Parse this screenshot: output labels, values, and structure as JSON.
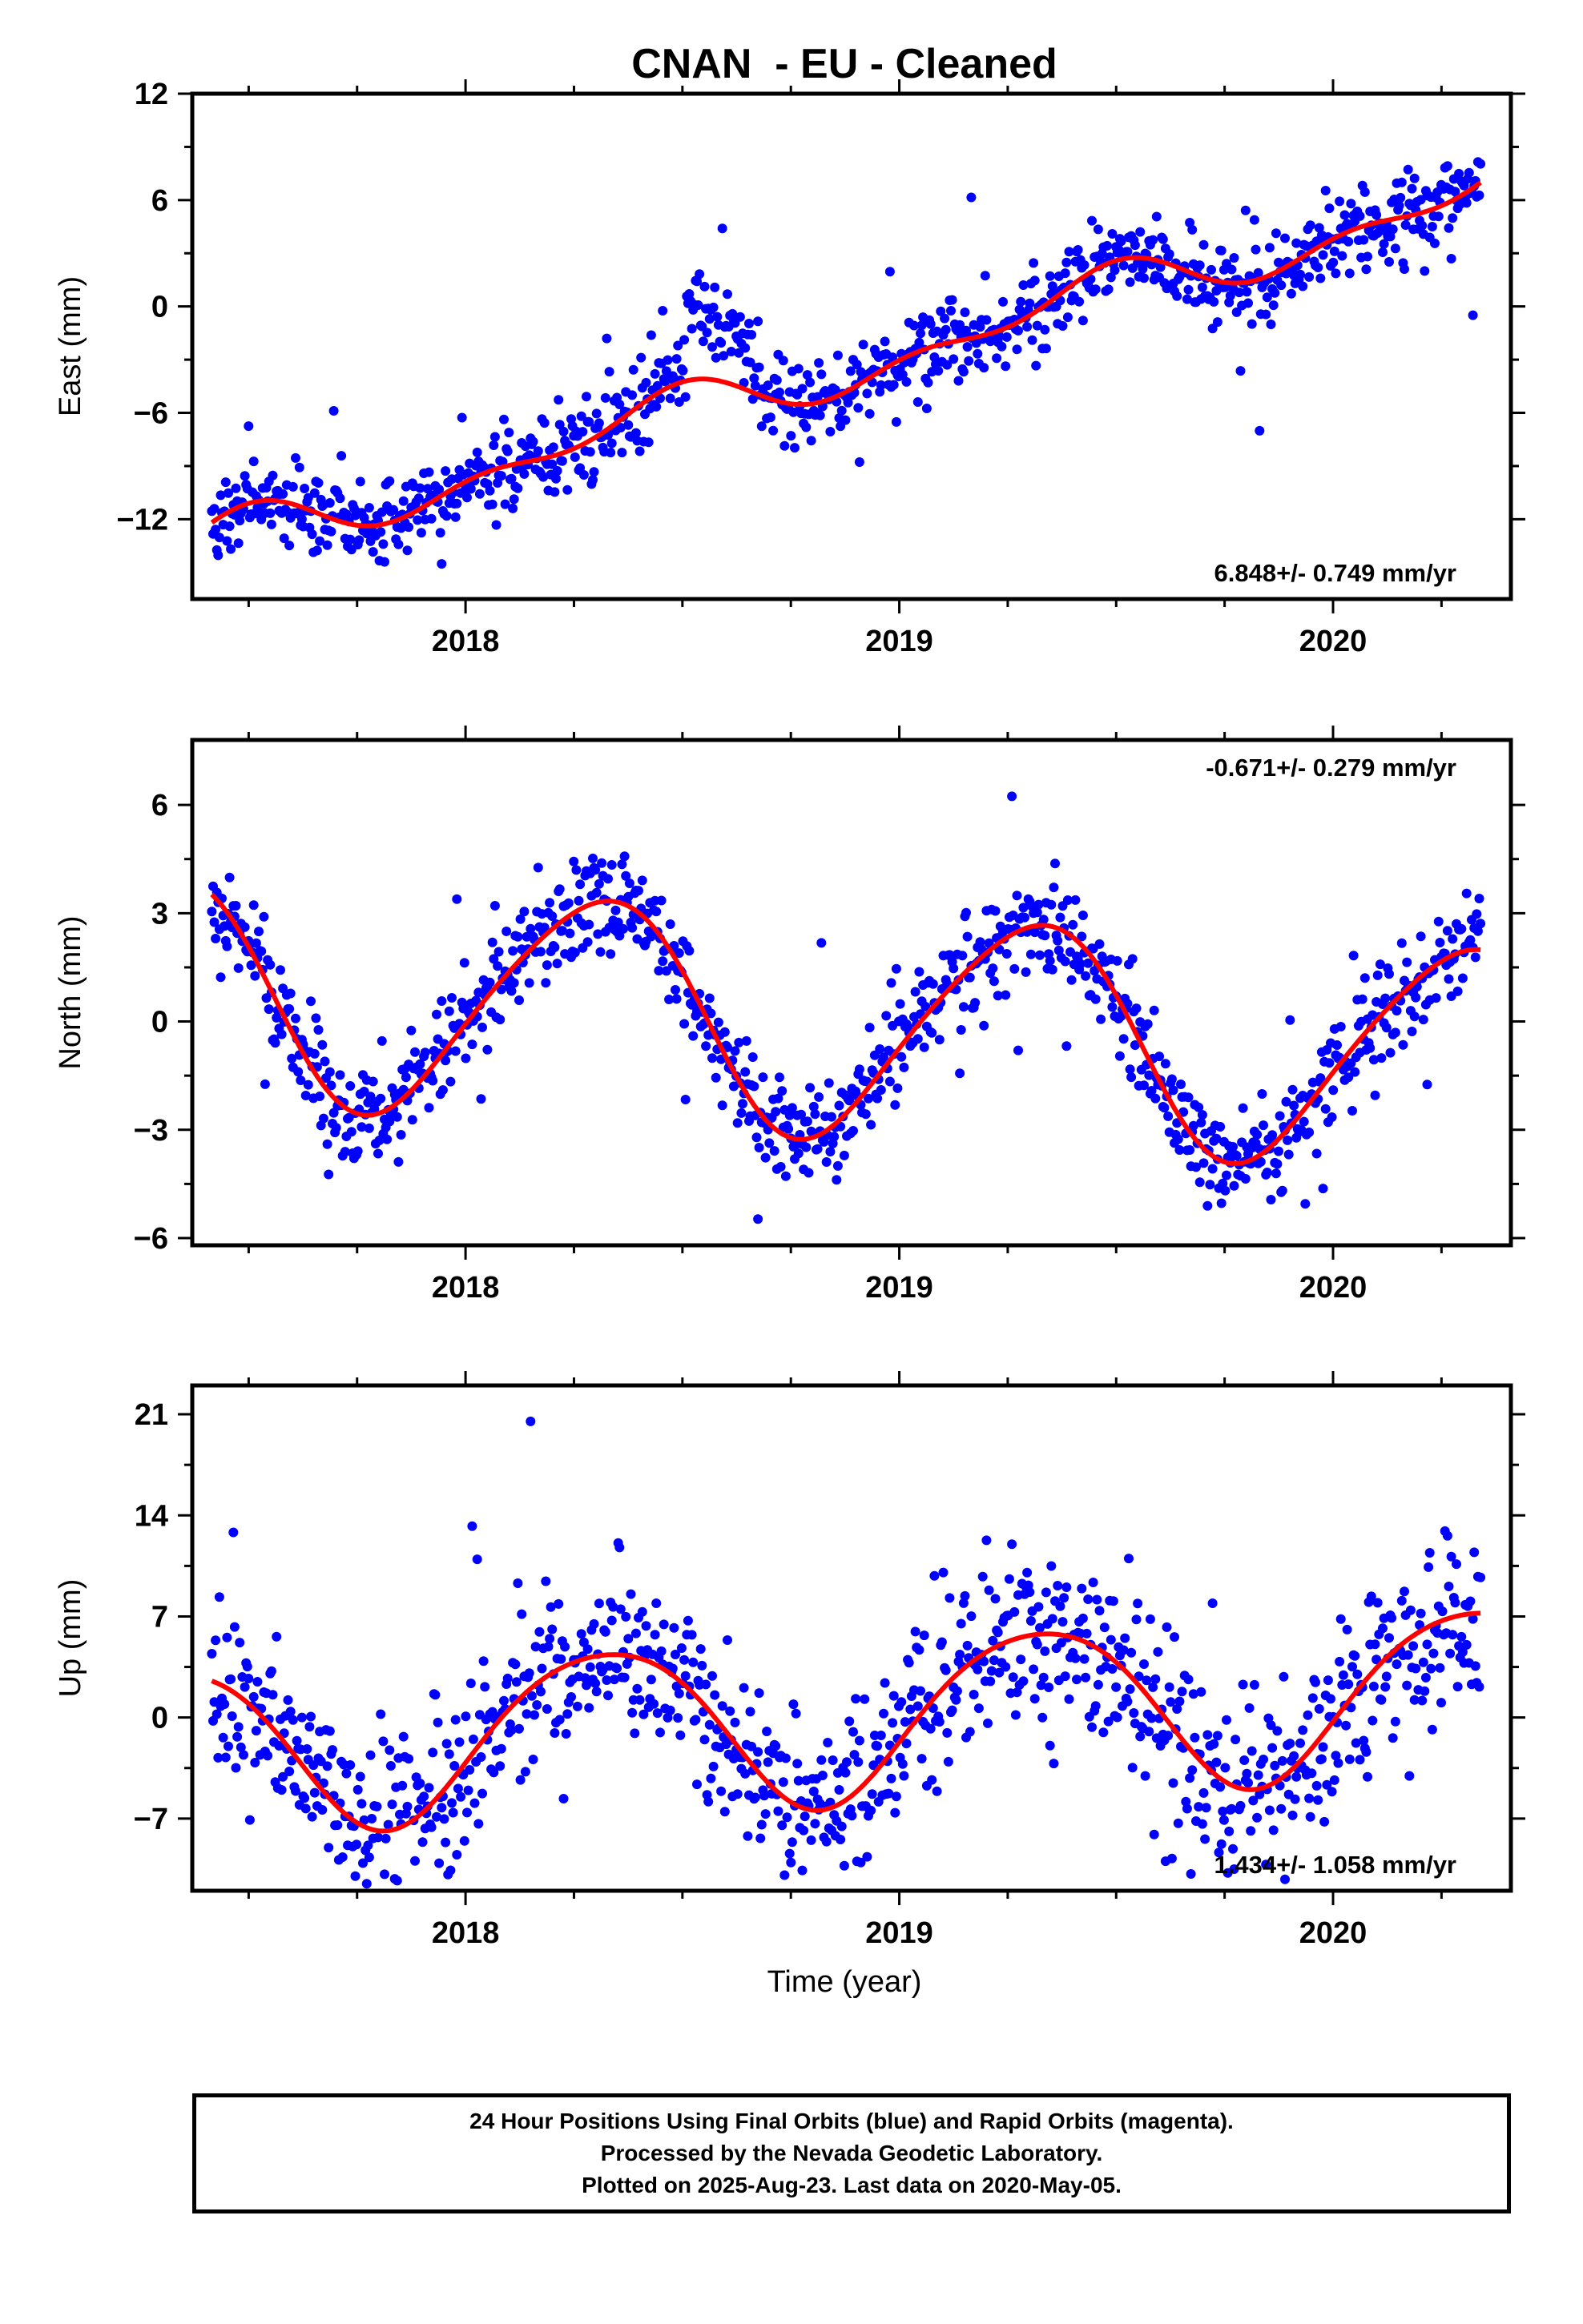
{
  "title": "CNAN  - EU - Cleaned",
  "xlabel": "Time (year)",
  "footer": {
    "line1": "24 Hour Positions Using Final Orbits (blue) and Rapid Orbits (magenta).",
    "line2": "Processed by the Nevada Geodetic Laboratory.",
    "line3": "Plotted on 2025-Aug-23. Last data on 2020-May-05."
  },
  "colors": {
    "points": "#0000ff",
    "fit": "#ff0000",
    "axes": "#000000"
  },
  "chart_data": [
    {
      "type": "scatter",
      "panel": "east",
      "ylabel": "East (mm)",
      "xlim": [
        2017.37,
        2020.41
      ],
      "ylim": [
        -16.5,
        12
      ],
      "xticks": [
        2018,
        2019,
        2020
      ],
      "xtick_labels": [
        "2018",
        "2019",
        "2020"
      ],
      "yticks": [
        -12,
        -6,
        0,
        6,
        12
      ],
      "ytick_labels": [
        "−12",
        "−6",
        "0",
        "6",
        "12"
      ],
      "rate_label": "6.848+/- 0.749 mm/yr",
      "rate_position": "bottom-right",
      "trend": {
        "rate": 6.848,
        "offset": -2.63,
        "seasonal": [
          0.45,
          -1.1,
          0.25,
          0.7
        ]
      },
      "scatter_sd": 1.15,
      "outlier_rate": 0.06,
      "offsets": [
        {
          "start": 2018.51,
          "end": 2018.66,
          "value": 4.2
        }
      ],
      "series": [
        {
          "name": "Final Orbits",
          "color": "#0000ff",
          "kind": "points"
        },
        {
          "name": "Fit",
          "color": "#ff0000",
          "kind": "line"
        }
      ]
    },
    {
      "type": "scatter",
      "panel": "north",
      "ylabel": "North (mm)",
      "xlim": [
        2017.37,
        2020.41
      ],
      "ylim": [
        -6.2,
        7.8
      ],
      "xticks": [
        2018,
        2019,
        2020
      ],
      "xtick_labels": [
        "2018",
        "2019",
        "2020"
      ],
      "yticks": [
        -6,
        -3,
        0,
        3,
        6
      ],
      "ytick_labels": [
        "−6",
        "−3",
        "0",
        "3",
        "6"
      ],
      "rate_label": "-0.671+/- 0.279 mm/yr",
      "rate_position": "top-right",
      "trend": {
        "rate": -0.671,
        "offset": -0.14,
        "seasonal": [
          2.95,
          -0.9,
          -0.2,
          0.3
        ]
      },
      "scatter_sd": 0.68,
      "outlier_rate": 0.04,
      "offsets": [],
      "series": [
        {
          "name": "Final Orbits",
          "color": "#0000ff",
          "kind": "points"
        },
        {
          "name": "Fit",
          "color": "#ff0000",
          "kind": "line"
        }
      ]
    },
    {
      "type": "scatter",
      "panel": "up",
      "ylabel": "Up (mm)",
      "xlim": [
        2017.37,
        2020.41
      ],
      "ylim": [
        -12,
        23
      ],
      "xticks": [
        2018,
        2019,
        2020
      ],
      "xtick_labels": [
        "2018",
        "2019",
        "2020"
      ],
      "yticks": [
        -7,
        0,
        7,
        14,
        21
      ],
      "ytick_labels": [
        "−7",
        "0",
        "7",
        "14",
        "21"
      ],
      "rate_label": "1.434+/- 1.058 mm/yr",
      "rate_position": "bottom-right",
      "trend": {
        "rate": 1.434,
        "offset": 0.2,
        "seasonal": [
          5.2,
          -2.4,
          0.4,
          0.5
        ]
      },
      "scatter_sd": 3.0,
      "outlier_rate": 0.07,
      "offsets": [],
      "series": [
        {
          "name": "Final Orbits",
          "color": "#0000ff",
          "kind": "points"
        },
        {
          "name": "Fit",
          "color": "#ff0000",
          "kind": "line"
        }
      ]
    }
  ]
}
